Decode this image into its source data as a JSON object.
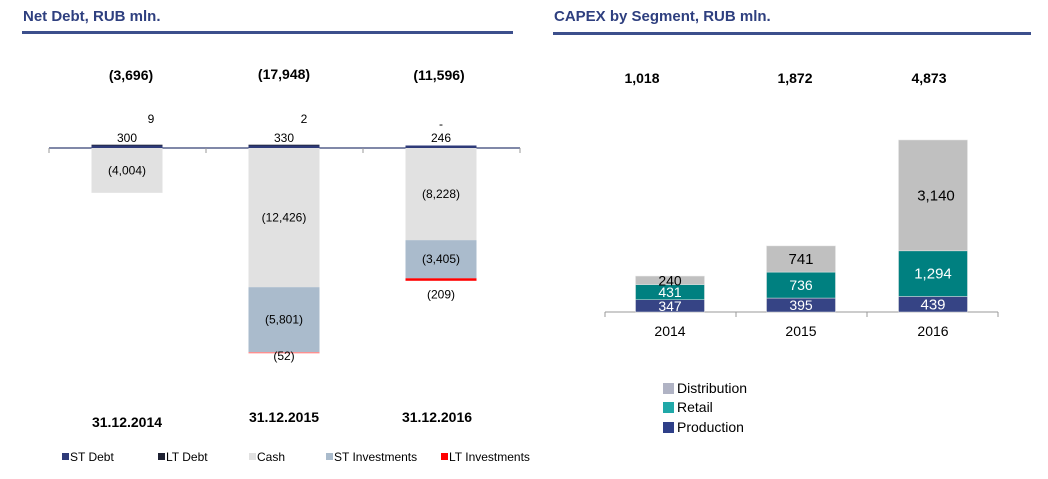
{
  "colors": {
    "title": "#2e3f7f",
    "st_debt": "#2e3a78",
    "lt_debt": "#1f2233",
    "cash": "#e1e1e1",
    "st_investments": "#aabbcc",
    "lt_investments": "#ff0000",
    "distribution": "#c0c0c0",
    "retail": "#008080",
    "production": "#364485"
  },
  "chart_data": [
    {
      "type": "bar",
      "stacked": true,
      "title": "Net Debt, RUB mln.",
      "categories": [
        "31.12.2014",
        "31.12.2015",
        "31.12.2016"
      ],
      "totals": [
        "(3,696)",
        "(17,948)",
        "(11,596)"
      ],
      "series": [
        {
          "name": "ST Debt",
          "key": "st_debt",
          "values": [
            300,
            330,
            246
          ],
          "labels": [
            "300",
            "330",
            "246"
          ]
        },
        {
          "name": "LT Debt",
          "key": "lt_debt",
          "values": [
            9,
            2,
            0
          ],
          "labels": [
            "9",
            "2",
            "-"
          ]
        },
        {
          "name": "Cash",
          "key": "cash",
          "values": [
            -4004,
            -12426,
            -8228
          ],
          "labels": [
            "(4,004)",
            "(12,426)",
            "(8,228)"
          ]
        },
        {
          "name": "ST Investments",
          "key": "st_investments",
          "values": [
            0,
            -5801,
            -3405
          ],
          "labels": [
            "",
            "(5,801)",
            "(3,405)"
          ]
        },
        {
          "name": "LT Investments",
          "key": "lt_investments",
          "values": [
            0,
            -52,
            -209
          ],
          "labels": [
            "",
            "(52)",
            "(209)"
          ]
        }
      ],
      "legend": [
        "ST Debt",
        "LT Debt",
        "Cash",
        "ST Investments",
        "LT Investments"
      ],
      "legend_position": "bottom",
      "grid": false
    },
    {
      "type": "bar",
      "stacked": true,
      "title": "CAPEX by Segment, RUB mln.",
      "categories": [
        "2014",
        "2015",
        "2016"
      ],
      "totals": [
        "1,018",
        "1,872",
        "4,873"
      ],
      "series": [
        {
          "name": "Production",
          "key": "production",
          "values": [
            347,
            395,
            439
          ],
          "labels": [
            "347",
            "395",
            "439"
          ]
        },
        {
          "name": "Retail",
          "key": "retail",
          "values": [
            431,
            736,
            1294
          ],
          "labels": [
            "431",
            "736",
            "1,294"
          ]
        },
        {
          "name": "Distribution",
          "key": "distribution",
          "values": [
            240,
            741,
            3140
          ],
          "labels": [
            "240",
            "741",
            "3,140"
          ]
        }
      ],
      "legend": [
        "Distribution",
        "Retail",
        "Production"
      ],
      "legend_position": "bottom-left",
      "grid": false
    }
  ]
}
